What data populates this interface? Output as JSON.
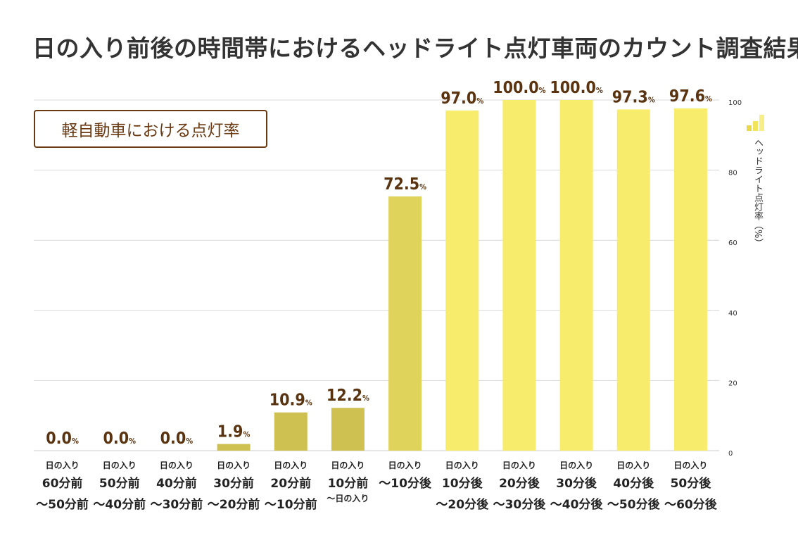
{
  "title": "日の入り前後の時間帯におけるヘッドライト点灯車両のカウント調査結果",
  "subtitle": "軽自動車における点灯率",
  "colors": {
    "bar_dark": "#cfc052",
    "bar_mid": "#e0d35c",
    "bar_light": "#f8ec6c",
    "value_text": "#5a3410",
    "grid": "#d9d9d9"
  },
  "chart_data": {
    "type": "bar",
    "title": "日の入り前後の時間帯におけるヘッドライト点灯車両のカウント調査結果",
    "subtitle": "軽自動車における点灯率",
    "ylabel": "ヘッドライト点灯率（%）",
    "xlabel": "",
    "ylim": [
      0,
      100
    ],
    "yticks": [
      0,
      20,
      40,
      60,
      80,
      100
    ],
    "grid": true,
    "value_suffix": "%",
    "categories": [
      {
        "l1": "日の入り",
        "l2": "60分前",
        "l3": "〜50分前"
      },
      {
        "l1": "日の入り",
        "l2": "50分前",
        "l3": "〜40分前"
      },
      {
        "l1": "日の入り",
        "l2": "40分前",
        "l3": "〜30分前"
      },
      {
        "l1": "日の入り",
        "l2": "30分前",
        "l3": "〜20分前"
      },
      {
        "l1": "日の入り",
        "l2": "20分前",
        "l3": "〜10分前"
      },
      {
        "l1": "日の入り",
        "l2": "10分前",
        "l3": "〜日の入り"
      },
      {
        "l1": "日の入り",
        "l2": "〜10分後",
        "l3": ""
      },
      {
        "l1": "日の入り",
        "l2": "10分後",
        "l3": "〜20分後"
      },
      {
        "l1": "日の入り",
        "l2": "20分後",
        "l3": "〜30分後"
      },
      {
        "l1": "日の入り",
        "l2": "30分後",
        "l3": "〜40分後"
      },
      {
        "l1": "日の入り",
        "l2": "40分後",
        "l3": "〜50分後"
      },
      {
        "l1": "日の入り",
        "l2": "50分後",
        "l3": "〜60分後"
      }
    ],
    "values": [
      0.0,
      0.0,
      0.0,
      1.9,
      10.9,
      12.2,
      72.5,
      97.0,
      100.0,
      100.0,
      97.3,
      97.6
    ],
    "value_labels": [
      "0.0",
      "0.0",
      "0.0",
      "1.9",
      "10.9",
      "12.2",
      "72.5",
      "97.0",
      "100.0",
      "100.0",
      "97.3",
      "97.6"
    ],
    "bar_shades": [
      "dark",
      "dark",
      "dark",
      "dark",
      "dark",
      "dark",
      "mid",
      "light",
      "light",
      "light",
      "light",
      "light"
    ]
  }
}
